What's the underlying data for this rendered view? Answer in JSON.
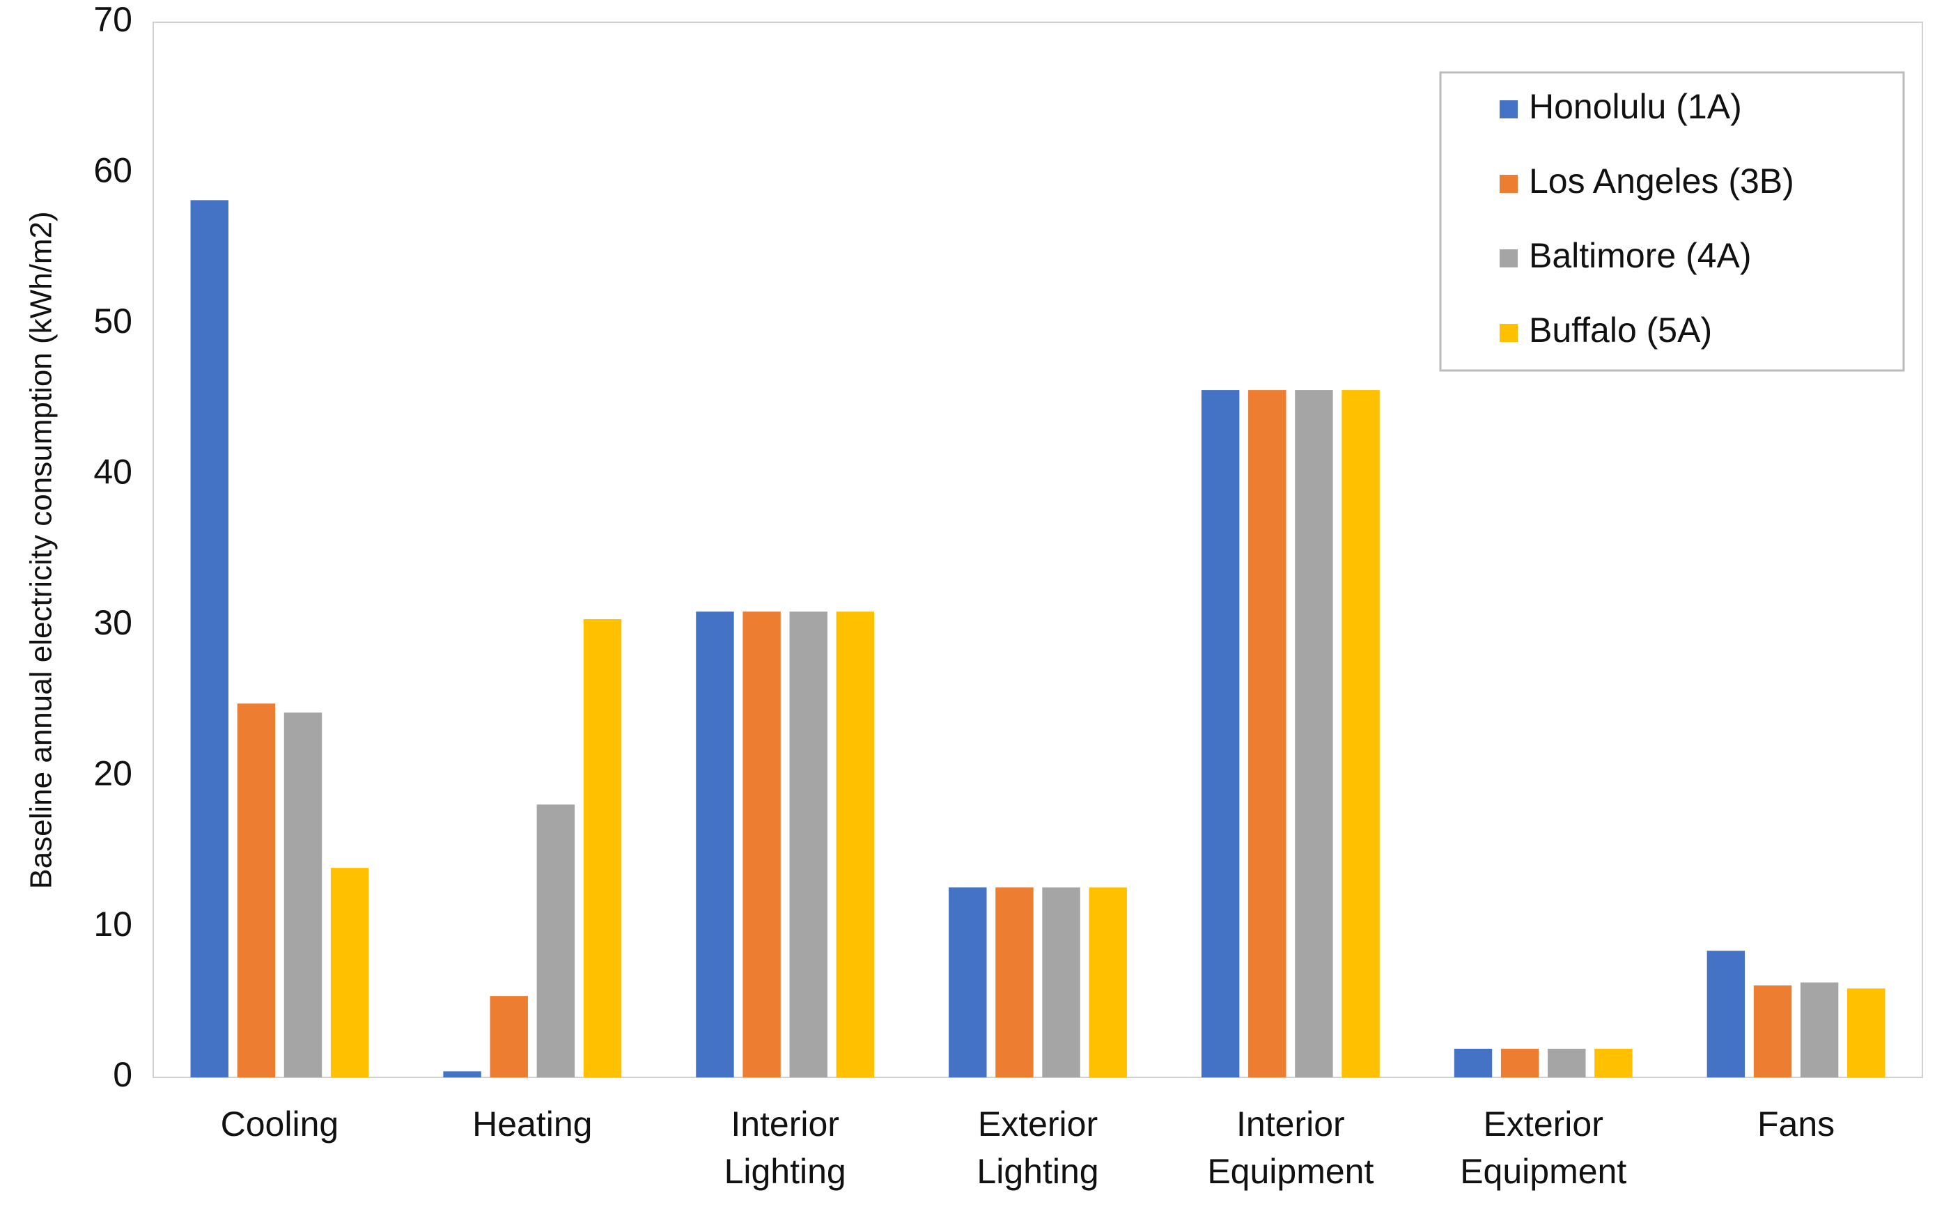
{
  "chart_data": {
    "type": "bar",
    "y_label": "Baseline annual electricity consumption (kWh/m2)",
    "categories": [
      "Cooling",
      "Heating",
      "Interior Lighting",
      "Exterior Lighting",
      "Interior Equipment",
      "Exterior Equipment",
      "Fans"
    ],
    "series": [
      {
        "name": "Honolulu (1A)",
        "color": "#4472c4",
        "values": [
          58.2,
          0.4,
          30.9,
          12.6,
          45.6,
          1.9,
          8.4
        ]
      },
      {
        "name": "Los Angeles (3B)",
        "color": "#ed7d31",
        "values": [
          24.8,
          5.4,
          30.9,
          12.6,
          45.6,
          1.9,
          6.1
        ]
      },
      {
        "name": "Baltimore (4A)",
        "color": "#a5a5a5",
        "values": [
          24.2,
          18.1,
          30.9,
          12.6,
          45.6,
          1.9,
          6.3
        ]
      },
      {
        "name": "Buffalo (5A)",
        "color": "#ffc000",
        "values": [
          13.9,
          30.4,
          30.9,
          12.6,
          45.6,
          1.9,
          5.9
        ]
      }
    ],
    "ylim": [
      0,
      70
    ],
    "yticks": [
      0,
      10,
      20,
      30,
      40,
      50,
      60,
      70
    ],
    "grid": false,
    "legend": "top-right"
  }
}
